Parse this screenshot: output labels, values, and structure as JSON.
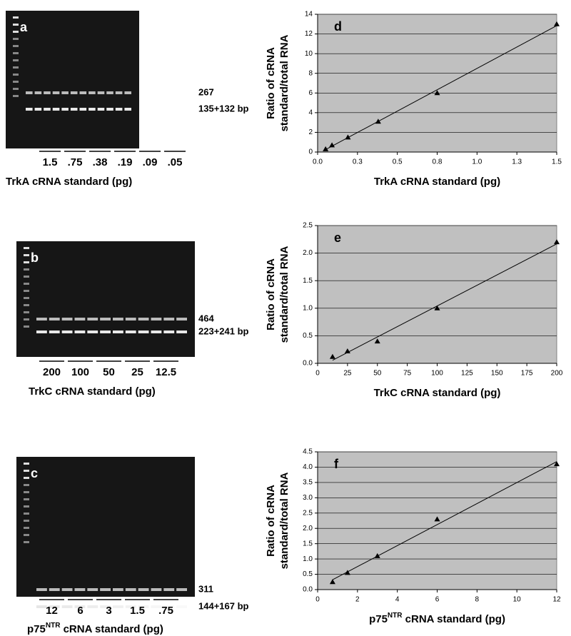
{
  "gels": [
    {
      "letter": "a",
      "band_labels": [
        "267",
        "135+132 bp"
      ],
      "lanes": [
        "1.5",
        ".75",
        ".38",
        ".19",
        ".09",
        ".05"
      ],
      "caption": "TrkA cRNA standard (pg)"
    },
    {
      "letter": "b",
      "band_labels": [
        "464",
        "223+241 bp"
      ],
      "lanes": [
        "200",
        "100",
        "50",
        "25",
        "12.5"
      ],
      "caption": "TrkC cRNA standard (pg)"
    },
    {
      "letter": "c",
      "band_labels": [
        "311",
        "144+167 bp"
      ],
      "lanes": [
        "12",
        "6",
        "3",
        "1.5",
        ".75"
      ],
      "caption": [
        {
          "text": "p75"
        },
        {
          "text": "NTR",
          "sup": true
        },
        {
          "text": " cRNA standard (pg)"
        }
      ]
    }
  ],
  "chart_data": [
    {
      "type": "scatter",
      "annotation": "d",
      "x_label": "TrkA cRNA standard (pg)",
      "y_label": [
        "Ratio of cRNA",
        "standard/total RNA"
      ],
      "x": [
        1.5,
        0.75,
        0.38,
        0.19,
        0.09,
        0.05
      ],
      "values": [
        13.0,
        6.0,
        3.1,
        1.5,
        0.7,
        0.3
      ],
      "color": "#000000",
      "marker": "triangle",
      "trendline": true,
      "grid": true,
      "xlim": [
        0,
        1.5
      ],
      "xticks": [
        {
          "value": 0,
          "label": "0.0"
        },
        {
          "value": 0.25,
          "label": "0.3"
        },
        0.5,
        {
          "value": 0.75,
          "label": "0.8"
        },
        {
          "value": 1,
          "label": "1.0"
        },
        {
          "value": 1.25,
          "label": "1.3"
        },
        1.5
      ],
      "ylim": [
        0,
        14
      ],
      "yticks": [
        0,
        2,
        4,
        6,
        8,
        10,
        12,
        14
      ]
    },
    {
      "type": "scatter",
      "annotation": "e",
      "x_label": "TrkC cRNA standard (pg)",
      "y_label": [
        "Ratio of cRNA",
        "standard/total RNA"
      ],
      "x": [
        200,
        100,
        50,
        25,
        12.5
      ],
      "values": [
        2.2,
        1.0,
        0.4,
        0.22,
        0.12
      ],
      "color": "#000000",
      "marker": "triangle",
      "trendline": true,
      "grid": true,
      "xlim": [
        0,
        200
      ],
      "xticks": [
        0,
        25,
        50,
        75,
        100,
        125,
        150,
        175,
        200
      ],
      "ylim": [
        0,
        2.5
      ],
      "yticks": [
        {
          "value": 0,
          "label": "0.0"
        },
        0.5,
        {
          "value": 1,
          "label": "1.0"
        },
        1.5,
        {
          "value": 2,
          "label": "2.0"
        },
        2.5
      ]
    },
    {
      "type": "scatter",
      "annotation": "f",
      "x_label": [
        {
          "text": "p75"
        },
        {
          "text": "NTR",
          "sup": true
        },
        {
          "text": " cRNA standard (pg)"
        }
      ],
      "y_label": [
        "Ratio of cRNA",
        "standard/total RNA"
      ],
      "x": [
        12,
        6,
        3,
        1.5,
        0.75
      ],
      "values": [
        4.1,
        2.3,
        1.1,
        0.55,
        0.25
      ],
      "color": "#000000",
      "marker": "triangle",
      "trendline": true,
      "grid": true,
      "xlim": [
        0,
        12
      ],
      "xticks": [
        0,
        2,
        4,
        6,
        8,
        10,
        12
      ],
      "ylim": [
        0,
        4.5
      ],
      "yticks": [
        {
          "value": 0,
          "label": "0.0"
        },
        0.5,
        {
          "value": 1,
          "label": "1.0"
        },
        1.5,
        {
          "value": 2,
          "label": "2.0"
        },
        2.5,
        {
          "value": 3,
          "label": "3.0"
        },
        3.5,
        {
          "value": 4,
          "label": "4.0"
        },
        4.5
      ]
    }
  ]
}
